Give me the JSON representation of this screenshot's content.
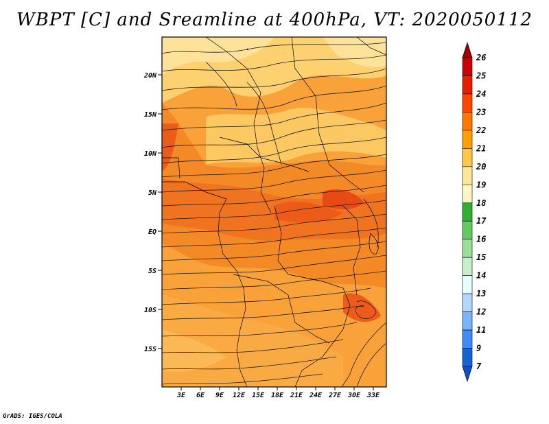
{
  "title": "WBPT [C] and Sreamline at 400hPa, VT: 2020050112",
  "footer": "GrADS: IGES/COLA",
  "map": {
    "lat_labels": [
      "20N",
      "15N",
      "10N",
      "5N",
      "EQ",
      "5S",
      "10S",
      "15S"
    ],
    "lon_labels": [
      "3E",
      "6E",
      "9E",
      "12E",
      "15E",
      "18E",
      "21E",
      "24E",
      "27E",
      "30E",
      "33E"
    ]
  },
  "colorbar": {
    "levels": [
      "26",
      "25",
      "24",
      "23",
      "22",
      "21",
      "20",
      "19",
      "18",
      "17",
      "16",
      "15",
      "14",
      "13",
      "12",
      "11",
      "9",
      "7"
    ],
    "colors": [
      "#a50000",
      "#c80000",
      "#e61e00",
      "#ff4600",
      "#ff7800",
      "#ffa000",
      "#ffc846",
      "#ffe696",
      "#fff6c8",
      "#30b030",
      "#60cc60",
      "#98e098",
      "#c8f0c8",
      "#e6ffff",
      "#b4d7ff",
      "#78b4ff",
      "#3c8cff",
      "#1464d2",
      "#0a50c8"
    ]
  },
  "colors": {
    "land_orange": "#f9a23a",
    "deep_orange": "#f47a1f",
    "red": "#e84a14",
    "light": "#fcc862"
  }
}
